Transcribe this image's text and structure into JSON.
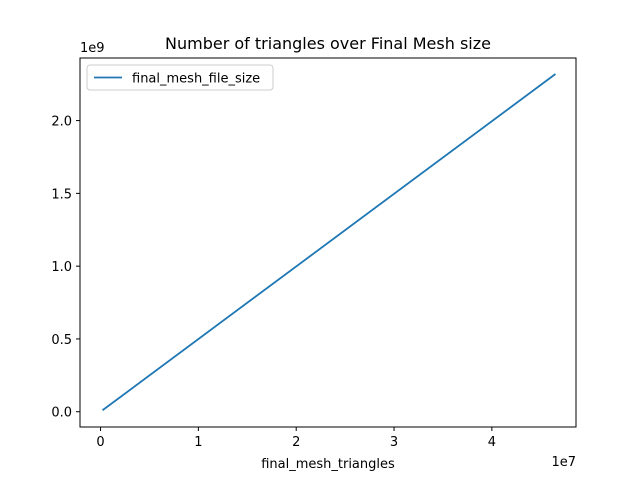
{
  "chart_data": {
    "type": "line",
    "title": "Number of triangles over Final Mesh size",
    "xlabel": "final_mesh_triangles",
    "ylabel": "",
    "x_offset_text": "1e7",
    "y_offset_text": "1e9",
    "xlim": [
      -0.21,
      4.86
    ],
    "ylim": [
      -0.105,
      2.43
    ],
    "xticks": [
      0,
      1,
      2,
      3,
      4
    ],
    "xtick_labels": [
      "0",
      "1",
      "2",
      "3",
      "4"
    ],
    "yticks": [
      0.0,
      0.5,
      1.0,
      1.5,
      2.0
    ],
    "ytick_labels": [
      "0.0",
      "0.5",
      "1.0",
      "1.5",
      "2.0"
    ],
    "grid": false,
    "legend_position": "upper-left",
    "series": [
      {
        "name": "final_mesh_file_size",
        "color": "#1f77b4",
        "x": [
          0.02,
          4.65
        ],
        "y": [
          0.01,
          2.32
        ]
      }
    ]
  }
}
